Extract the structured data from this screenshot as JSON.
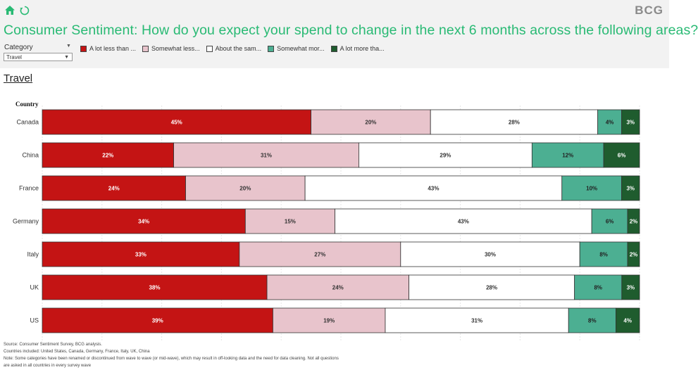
{
  "header": {
    "logo": "BCG",
    "title": "Consumer Sentiment: How do you expect your spend to change in the next 6 months across the following areas?",
    "filter_label": "Category",
    "filter_value": "Travel"
  },
  "section_title": "Travel",
  "colors": {
    "a_lot_less": "#c41414",
    "somewhat_less": "#e8c4cc",
    "about_same": "#ffffff",
    "somewhat_more": "#4caf92",
    "a_lot_more": "#1f5c2e",
    "title_green": "#29ba74"
  },
  "chart_data": {
    "type": "bar",
    "orientation": "horizontal",
    "stacked": true,
    "normalized": true,
    "y_axis_title": "Country",
    "categories": [
      "Canada",
      "China",
      "France",
      "Germany",
      "Italy",
      "UK",
      "US"
    ],
    "series": [
      {
        "name": "A lot less than ...",
        "color": "#c41414",
        "label_color": "#ffffff",
        "values": [
          45,
          22,
          24,
          34,
          33,
          38,
          39
        ]
      },
      {
        "name": "Somewhat less...",
        "color": "#e8c4cc",
        "label_color": "#333333",
        "values": [
          20,
          31,
          20,
          15,
          27,
          24,
          19
        ]
      },
      {
        "name": "About the sam...",
        "color": "#ffffff",
        "label_color": "#333333",
        "values": [
          28,
          29,
          43,
          43,
          30,
          28,
          31
        ]
      },
      {
        "name": "Somewhat mor...",
        "color": "#4caf92",
        "label_color": "#222222",
        "values": [
          4,
          12,
          10,
          6,
          8,
          8,
          8
        ]
      },
      {
        "name": "A lot more tha...",
        "color": "#1f5c2e",
        "label_color": "#ffffff",
        "values": [
          3,
          6,
          3,
          2,
          2,
          3,
          4
        ]
      }
    ]
  },
  "footnotes": [
    "Source: Consumer Sentiment Survey, BCG analysis.",
    "Countries included: United States, Canada, Germany, France, Italy, UK, China",
    "Note: Some categories have been renamed or discontinued from wave to wave (or mid-wave), which may result in off-looking data and the need for data cleaning. Not all questions",
    "are asked in all countries in every survey wave"
  ]
}
